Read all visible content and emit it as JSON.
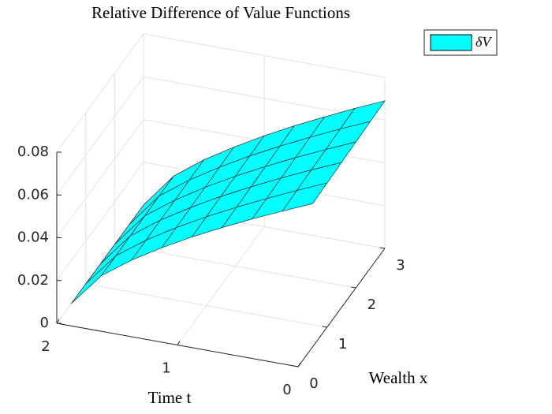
{
  "chart_data": {
    "type": "surface",
    "title": "Relative Difference of Value Functions",
    "xlabel": "Time t",
    "ylabel": "Wealth x",
    "legend": "δV",
    "color": "#00ffff",
    "edge_color": "#1f2f2f",
    "grid": true,
    "t": [
      0,
      0.25,
      0.5,
      0.75,
      1,
      1.25,
      1.5,
      1.75,
      2
    ],
    "x": [
      0.5,
      1,
      1.5,
      2,
      2.5,
      3
    ],
    "z": [
      [
        0.067,
        0.0674,
        0.0678,
        0.0682,
        0.0686,
        0.069
      ],
      [
        0.061,
        0.0614,
        0.0618,
        0.0621,
        0.0625,
        0.0629
      ],
      [
        0.0548,
        0.0551,
        0.0555,
        0.0558,
        0.0561,
        0.0564
      ],
      [
        0.0482,
        0.0485,
        0.0488,
        0.0491,
        0.0494,
        0.0497
      ],
      [
        0.0413,
        0.0415,
        0.0418,
        0.042,
        0.0423,
        0.0425
      ],
      [
        0.0337,
        0.0339,
        0.0341,
        0.0343,
        0.0345,
        0.0347
      ],
      [
        0.0254,
        0.0255,
        0.0257,
        0.0258,
        0.026,
        0.0262
      ],
      [
        0.0156,
        0.0157,
        0.0158,
        0.0159,
        0.016,
        0.0161
      ],
      [
        0,
        0,
        0,
        0,
        0,
        0
      ]
    ],
    "tlim": [
      0,
      2
    ],
    "tticks": [
      0,
      1,
      2
    ],
    "xlim": [
      0,
      3
    ],
    "xticks": [
      0,
      1,
      2,
      3
    ],
    "zlim": [
      0,
      0.08
    ],
    "zticks": [
      0,
      0.02,
      0.04,
      0.06,
      0.08
    ]
  }
}
